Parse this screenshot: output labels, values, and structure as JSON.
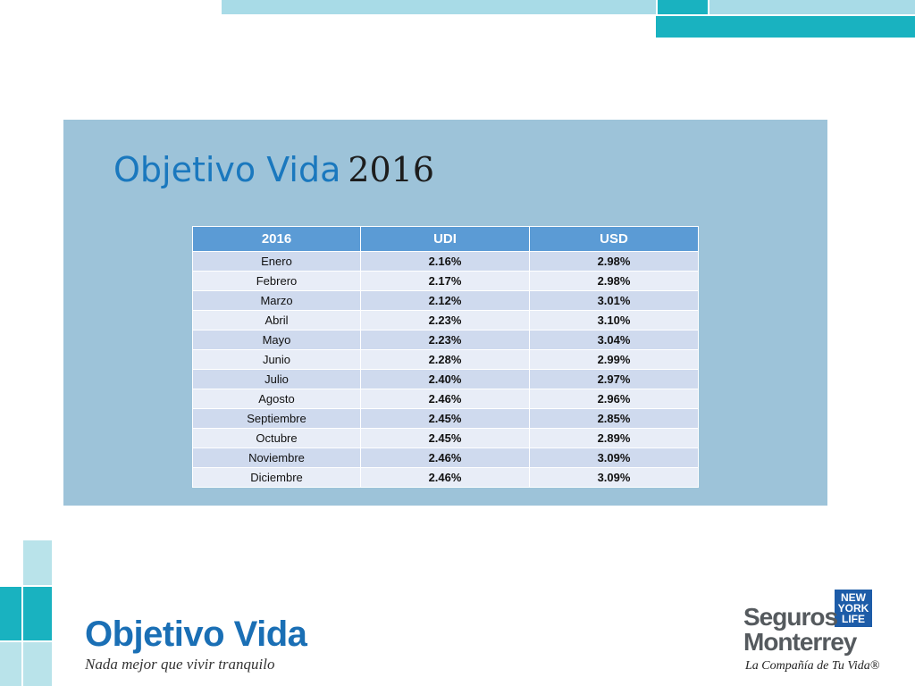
{
  "slide": {
    "title_name": "Objetivo Vida",
    "title_year": "2016"
  },
  "table": {
    "headers": [
      "2016",
      "UDI",
      "USD"
    ],
    "rows": [
      {
        "month": "Enero",
        "udi": "2.16%",
        "usd": "2.98%"
      },
      {
        "month": "Febrero",
        "udi": "2.17%",
        "usd": "2.98%"
      },
      {
        "month": "Marzo",
        "udi": "2.12%",
        "usd": "3.01%"
      },
      {
        "month": "Abril",
        "udi": "2.23%",
        "usd": "3.10%"
      },
      {
        "month": "Mayo",
        "udi": "2.23%",
        "usd": "3.04%"
      },
      {
        "month": "Junio",
        "udi": "2.28%",
        "usd": "2.99%"
      },
      {
        "month": "Julio",
        "udi": "2.40%",
        "usd": "2.97%"
      },
      {
        "month": "Agosto",
        "udi": "2.46%",
        "usd": "2.96%"
      },
      {
        "month": "Septiembre",
        "udi": "2.45%",
        "usd": "2.85%"
      },
      {
        "month": "Octubre",
        "udi": "2.45%",
        "usd": "2.89%"
      },
      {
        "month": "Noviembre",
        "udi": "2.46%",
        "usd": "3.09%"
      },
      {
        "month": "Diciembre",
        "udi": "2.46%",
        "usd": "3.09%"
      }
    ]
  },
  "brand": {
    "name": "Objetivo Vida",
    "tagline": "Nada mejor que vivir tranquilo"
  },
  "logo": {
    "badge_lines": [
      "NEW",
      "YORK",
      "LIFE"
    ],
    "word1": "Seguros",
    "word2": "Monterrey",
    "tagline": "La Compañía de Tu Vida®"
  },
  "colors": {
    "teal": "#19b2c0",
    "light_teal": "#a8dbe7",
    "panel": "#9dc3d9",
    "table_header": "#5b9bd5",
    "brand_blue": "#1a6fb5"
  }
}
